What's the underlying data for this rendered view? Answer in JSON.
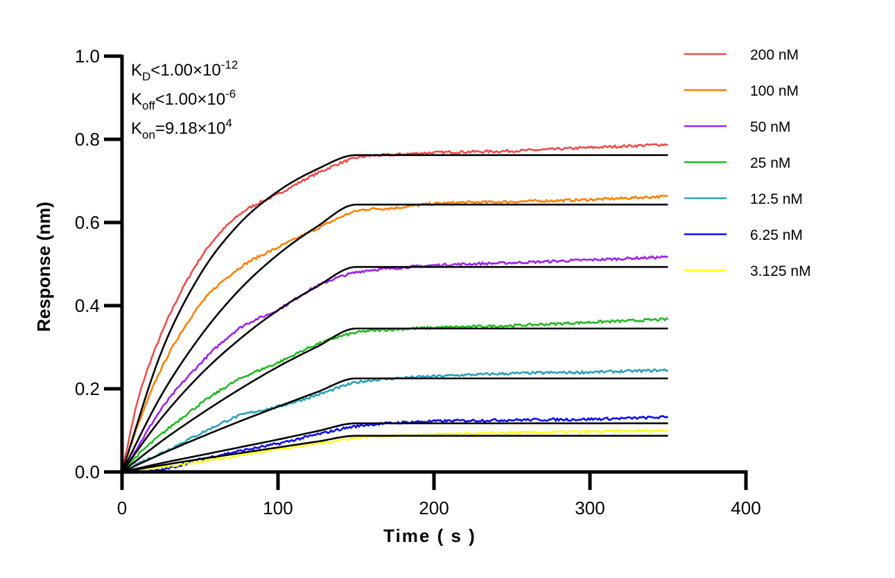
{
  "chart_data": {
    "type": "line",
    "xlabel": "Time ( s )",
    "ylabel": "Response (nm)",
    "xlim": [
      0,
      400
    ],
    "ylim": [
      0,
      1.0
    ],
    "xticks": [
      "0",
      "100",
      "200",
      "300",
      "400"
    ],
    "yticks": [
      "0.0",
      "0.2",
      "0.4",
      "0.6",
      "0.8",
      "1.0"
    ],
    "grid": false,
    "legend_position": "top-right",
    "annotations": [
      {
        "main": "K",
        "sub": "D",
        "rest": "<1.00×10",
        "sup": "-12"
      },
      {
        "main": "K",
        "sub": "off",
        "rest": "<1.00×10",
        "sup": "-6"
      },
      {
        "main": "K",
        "sub": "on",
        "rest": "=9.18×10",
        "sup": "4"
      }
    ],
    "fit_color": "#000000",
    "fit_x": [
      0,
      25,
      50,
      75,
      100,
      125,
      150,
      350
    ],
    "data_x": [
      0,
      10,
      25,
      50,
      75,
      100,
      125,
      150,
      175,
      200,
      250,
      300,
      350
    ],
    "series": [
      {
        "name": "200 nM",
        "color": "#ef4b4b",
        "data": [
          0,
          0.17,
          0.33,
          0.513,
          0.618,
          0.668,
          0.718,
          0.755,
          0.763,
          0.768,
          0.772,
          0.78,
          0.788
        ],
        "fit": [
          0,
          0.286,
          0.474,
          0.596,
          0.675,
          0.728,
          0.762,
          0.762
        ]
      },
      {
        "name": "100 nM",
        "color": "#ff8000",
        "data": [
          0,
          0.11,
          0.247,
          0.402,
          0.49,
          0.54,
          0.585,
          0.627,
          0.635,
          0.645,
          0.65,
          0.655,
          0.663
        ],
        "fit": [
          0,
          0.183,
          0.325,
          0.437,
          0.523,
          0.59,
          0.643,
          0.643
        ]
      },
      {
        "name": "50 nM",
        "color": "#a020f0",
        "data": [
          0,
          0.06,
          0.15,
          0.26,
          0.345,
          0.39,
          0.447,
          0.48,
          0.49,
          0.497,
          0.503,
          0.51,
          0.517
        ],
        "fit": [
          0,
          0.128,
          0.233,
          0.318,
          0.389,
          0.446,
          0.493,
          0.493
        ]
      },
      {
        "name": "25 nM",
        "color": "#1fba1f",
        "data": [
          0,
          0.04,
          0.09,
          0.163,
          0.223,
          0.263,
          0.307,
          0.335,
          0.343,
          0.347,
          0.352,
          0.36,
          0.367
        ],
        "fit": [
          0,
          0.073,
          0.138,
          0.198,
          0.253,
          0.301,
          0.345,
          0.345
        ]
      },
      {
        "name": "12.5 nM",
        "color": "#2aa0b8",
        "data": [
          0,
          0.02,
          0.045,
          0.092,
          0.135,
          0.157,
          0.185,
          0.215,
          0.225,
          0.23,
          0.237,
          0.24,
          0.245
        ],
        "fit": [
          0,
          0.043,
          0.083,
          0.121,
          0.157,
          0.192,
          0.225,
          0.225
        ]
      },
      {
        "name": "6.25 nM",
        "color": "#0a0aff",
        "data": [
          0,
          0.0,
          0.005,
          0.03,
          0.05,
          0.068,
          0.09,
          0.11,
          0.118,
          0.122,
          0.125,
          0.127,
          0.132
        ],
        "fit": [
          0,
          0.021,
          0.04,
          0.059,
          0.078,
          0.098,
          0.117,
          0.117
        ]
      },
      {
        "name": "3.125 nM",
        "color": "#ffff22",
        "data": [
          0,
          0.005,
          0.012,
          0.025,
          0.04,
          0.055,
          0.068,
          0.082,
          0.087,
          0.09,
          0.094,
          0.097,
          0.1
        ],
        "fit": [
          0,
          0.016,
          0.031,
          0.045,
          0.059,
          0.073,
          0.087,
          0.087
        ]
      }
    ]
  }
}
